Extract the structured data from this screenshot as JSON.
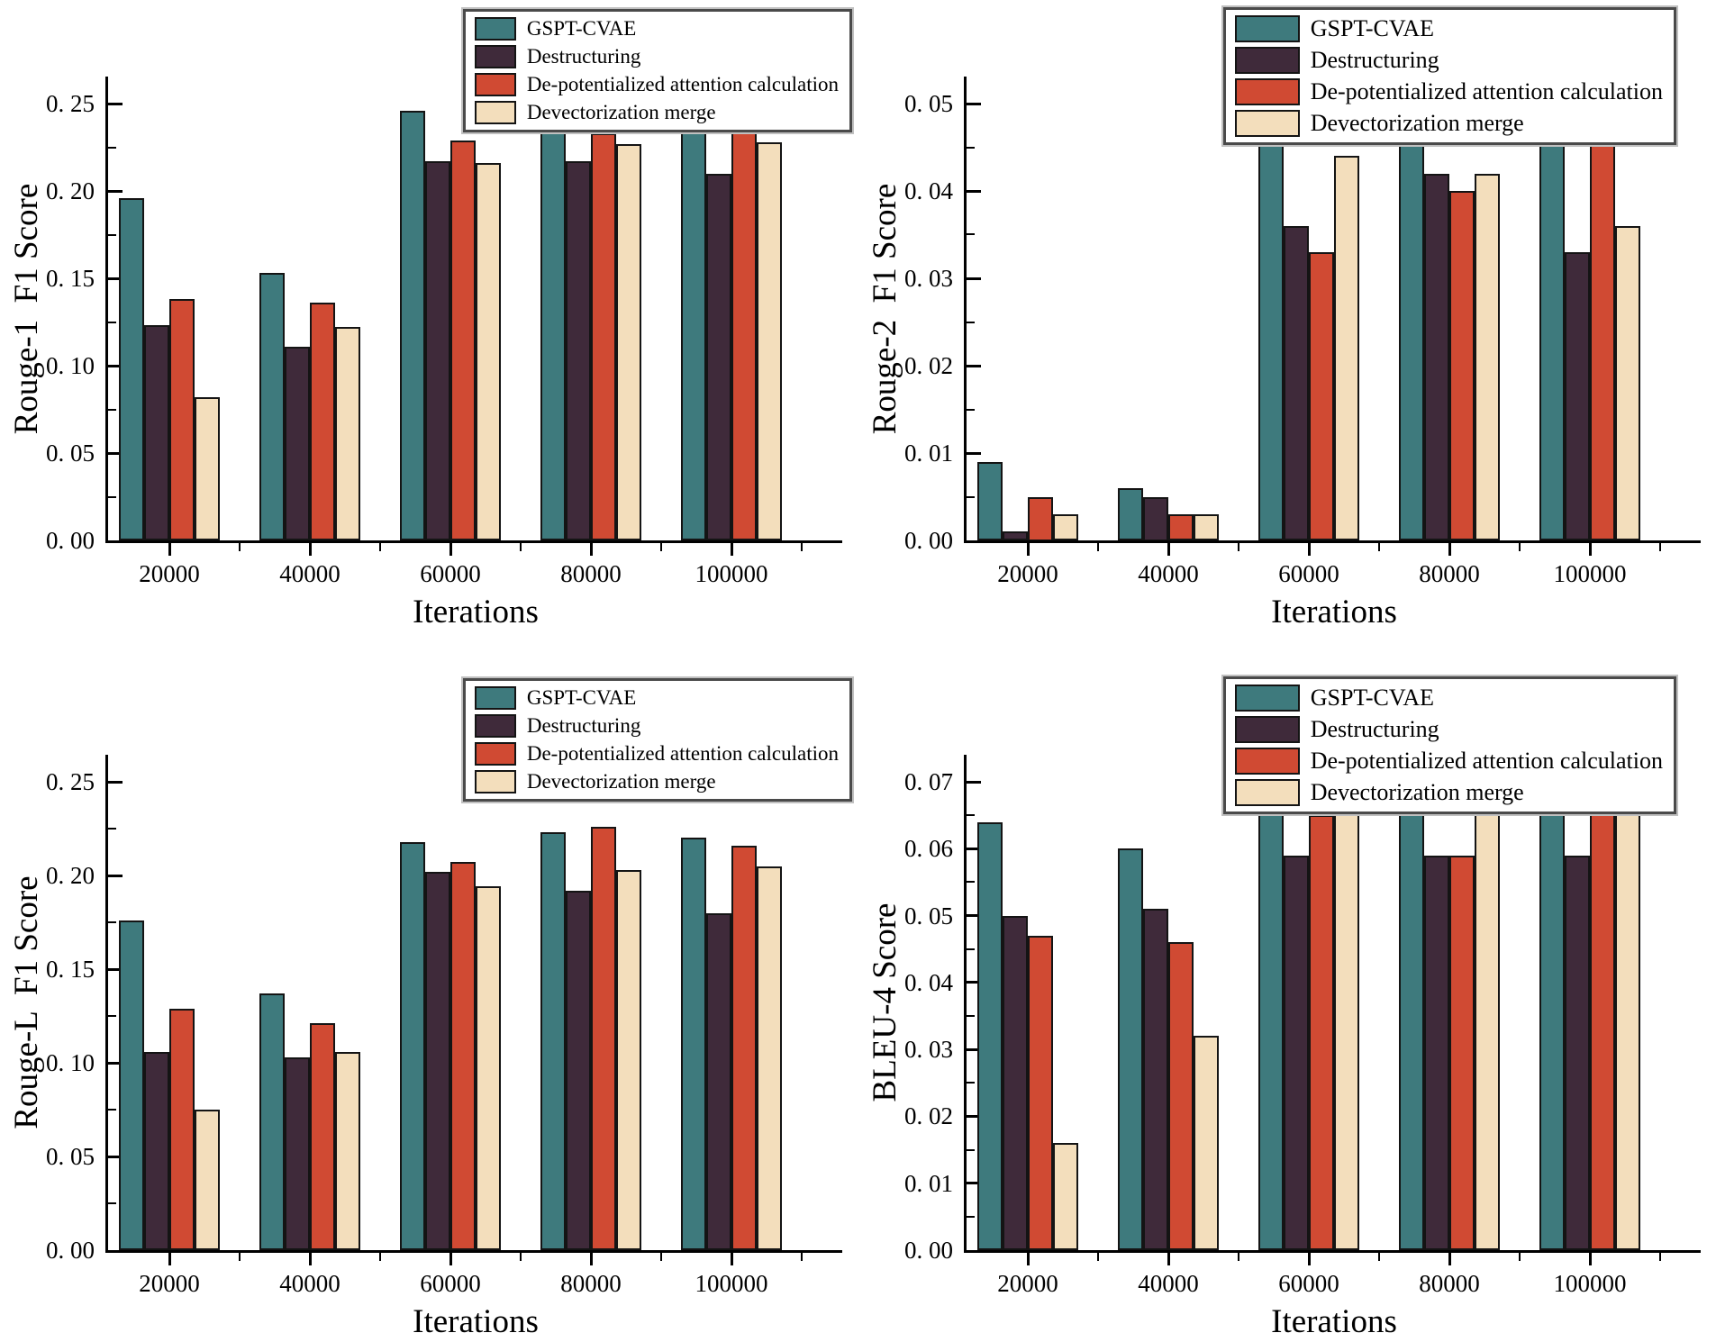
{
  "figure": {
    "xlabel": "Iterations",
    "categories": [
      "20000",
      "40000",
      "60000",
      "80000",
      "100000"
    ]
  },
  "colors": {
    "series": [
      "#3E7A7D",
      "#3F2A3A",
      "#D04A33",
      "#F3DEBC"
    ],
    "bar_edge": "#141414",
    "axis": "#000000",
    "background": "#ffffff"
  },
  "legend": {
    "items": [
      {
        "label": "GSPT-CVAE",
        "color": "#3E7A7D"
      },
      {
        "label": "Destructuring",
        "color": "#3F2A3A"
      },
      {
        "label": "De-potentialized attention calculation",
        "color": "#D04A33"
      },
      {
        "label": "Devectorization merge",
        "color": "#F3DEBC"
      }
    ]
  },
  "chart_data": [
    {
      "type": "bar",
      "title": "",
      "xlabel": "Iterations",
      "ylabel": "Rouge-1  F1 Score",
      "categories": [
        "20000",
        "40000",
        "60000",
        "80000",
        "100000"
      ],
      "series": [
        {
          "name": "GSPT-CVAE",
          "color": "#3E7A7D",
          "values": [
            0.196,
            0.153,
            0.246,
            0.241,
            0.243
          ]
        },
        {
          "name": "Destructuring",
          "color": "#3F2A3A",
          "values": [
            0.123,
            0.111,
            0.217,
            0.217,
            0.21
          ]
        },
        {
          "name": "De-potentialized attention calculation",
          "color": "#D04A33",
          "values": [
            0.138,
            0.136,
            0.229,
            0.233,
            0.238
          ]
        },
        {
          "name": "Devectorization merge",
          "color": "#F3DEBC",
          "values": [
            0.082,
            0.122,
            0.216,
            0.227,
            0.228
          ]
        }
      ],
      "y_ticks": {
        "labels": [
          "0. 00",
          "0. 05",
          "0. 10",
          "0. 15",
          "0. 20",
          "0. 25"
        ],
        "values": [
          0,
          0.05,
          0.1,
          0.15,
          0.2,
          0.25
        ]
      },
      "ylim": [
        0,
        0.266
      ],
      "grid": false,
      "legend_position": "top-right-inside"
    },
    {
      "type": "bar",
      "title": "",
      "xlabel": "Iterations",
      "ylabel": "Rouge-2  F1 Score",
      "categories": [
        "20000",
        "40000",
        "60000",
        "80000",
        "100000"
      ],
      "series": [
        {
          "name": "GSPT-CVAE",
          "color": "#3E7A7D",
          "values": [
            0.009,
            0.006,
            0.047,
            0.048,
            0.049
          ]
        },
        {
          "name": "Destructuring",
          "color": "#3F2A3A",
          "values": [
            0.001,
            0.005,
            0.036,
            0.042,
            0.033
          ]
        },
        {
          "name": "De-potentialized attention calculation",
          "color": "#D04A33",
          "values": [
            0.005,
            0.003,
            0.033,
            0.04,
            0.047
          ]
        },
        {
          "name": "Devectorization merge",
          "color": "#F3DEBC",
          "values": [
            0.003,
            0.003,
            0.044,
            0.042,
            0.036
          ]
        }
      ],
      "y_ticks": {
        "labels": [
          "0. 00",
          "0. 01",
          "0. 02",
          "0. 03",
          "0. 04",
          "0. 05"
        ],
        "values": [
          0,
          0.01,
          0.02,
          0.03,
          0.04,
          0.05
        ]
      },
      "ylim": [
        0,
        0.0532
      ],
      "grid": false,
      "legend_position": "top-right-inside"
    },
    {
      "type": "bar",
      "title": "",
      "xlabel": "Iterations",
      "ylabel": "Rouge-L  F1 Score",
      "categories": [
        "20000",
        "40000",
        "60000",
        "80000",
        "100000"
      ],
      "series": [
        {
          "name": "GSPT-CVAE",
          "color": "#3E7A7D",
          "values": [
            0.176,
            0.137,
            0.218,
            0.223,
            0.22
          ]
        },
        {
          "name": "Destructuring",
          "color": "#3F2A3A",
          "values": [
            0.106,
            0.103,
            0.202,
            0.192,
            0.18
          ]
        },
        {
          "name": "De-potentialized attention calculation",
          "color": "#D04A33",
          "values": [
            0.129,
            0.121,
            0.207,
            0.226,
            0.216
          ]
        },
        {
          "name": "Devectorization merge",
          "color": "#F3DEBC",
          "values": [
            0.075,
            0.106,
            0.194,
            0.203,
            0.205
          ]
        }
      ],
      "y_ticks": {
        "labels": [
          "0. 00",
          "0. 05",
          "0. 10",
          "0. 15",
          "0. 20",
          "0. 25"
        ],
        "values": [
          0,
          0.05,
          0.1,
          0.15,
          0.2,
          0.25
        ]
      },
      "ylim": [
        0,
        0.266
      ],
      "grid": false,
      "legend_position": "top-right-inside"
    },
    {
      "type": "bar",
      "title": "",
      "xlabel": "Iterations",
      "ylabel": "BLEU-4 Score",
      "categories": [
        "20000",
        "40000",
        "60000",
        "80000",
        "100000"
      ],
      "series": [
        {
          "name": "GSPT-CVAE",
          "color": "#3E7A7D",
          "values": [
            0.064,
            0.06,
            0.066,
            0.066,
            0.066
          ]
        },
        {
          "name": "Destructuring",
          "color": "#3F2A3A",
          "values": [
            0.05,
            0.051,
            0.059,
            0.059,
            0.059
          ]
        },
        {
          "name": "De-potentialized attention calculation",
          "color": "#D04A33",
          "values": [
            0.047,
            0.046,
            0.065,
            0.059,
            0.066
          ]
        },
        {
          "name": "Devectorization merge",
          "color": "#F3DEBC",
          "values": [
            0.016,
            0.032,
            0.066,
            0.066,
            0.066
          ]
        }
      ],
      "y_ticks": {
        "labels": [
          "0. 00",
          "0. 01",
          "0. 02",
          "0. 03",
          "0. 04",
          "0. 05",
          "0. 06",
          "0. 07"
        ],
        "values": [
          0,
          0.01,
          0.02,
          0.03,
          0.04,
          0.05,
          0.06,
          0.07
        ]
      },
      "ylim": [
        0,
        0.0744
      ],
      "grid": false,
      "legend_position": "top-right-inside"
    }
  ]
}
